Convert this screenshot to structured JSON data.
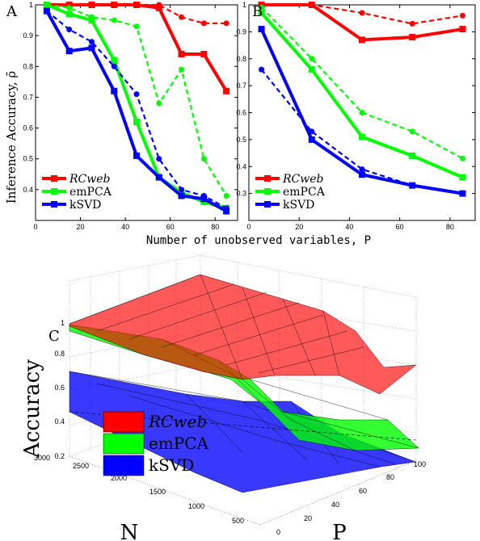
{
  "figure": {
    "xlabel": "Number of unobserved variables, P",
    "ylabel": "Inference Accuracy, ρ̄"
  },
  "chart_data": [
    {
      "panel": "A",
      "type": "line",
      "xlim": [
        0,
        90
      ],
      "ylim": [
        0.3,
        1.0
      ],
      "xticks": [
        0,
        20,
        40,
        60,
        80
      ],
      "yticks": [
        0.4,
        0.5,
        0.6,
        0.7,
        0.8,
        0.9,
        1
      ],
      "legend": "bottom-left",
      "series": [
        {
          "name": "RCweb",
          "color": "#ff0000",
          "style": "solid",
          "marker": "square",
          "x": [
            5,
            15,
            25,
            35,
            45,
            55,
            65,
            75,
            85
          ],
          "y": [
            1.0,
            1.0,
            1.0,
            1.0,
            1.0,
            0.99,
            0.84,
            0.84,
            0.72
          ]
        },
        {
          "name": "",
          "color": "#ff0000",
          "style": "dashed",
          "marker": "circle",
          "x": [
            5,
            15,
            25,
            35,
            45,
            55,
            65,
            75,
            85
          ],
          "y": [
            1.0,
            1.0,
            1.0,
            1.0,
            1.0,
            1.0,
            0.96,
            0.94,
            0.94
          ]
        },
        {
          "name": "emPCA",
          "color": "#00ff00",
          "style": "solid",
          "marker": "square",
          "x": [
            5,
            15,
            25,
            35,
            45,
            55,
            65,
            75,
            85
          ],
          "y": [
            1.0,
            0.97,
            0.95,
            0.82,
            0.62,
            0.44,
            0.39,
            0.36,
            0.34
          ]
        },
        {
          "name": "",
          "color": "#00ff00",
          "style": "dashed",
          "marker": "circle",
          "x": [
            5,
            15,
            25,
            35,
            45,
            55,
            65,
            75,
            85
          ],
          "y": [
            1.0,
            0.99,
            0.96,
            0.95,
            0.93,
            0.68,
            0.79,
            0.5,
            0.38
          ]
        },
        {
          "name": "kSVD",
          "color": "#0000ff",
          "style": "solid",
          "marker": "square",
          "x": [
            5,
            15,
            25,
            35,
            45,
            55,
            65,
            75,
            85
          ],
          "y": [
            0.98,
            0.85,
            0.86,
            0.72,
            0.51,
            0.44,
            0.38,
            0.37,
            0.33
          ]
        },
        {
          "name": "",
          "color": "#0000ff",
          "style": "dashed",
          "marker": "circle",
          "x": [
            5,
            15,
            25,
            35,
            45,
            55,
            65,
            75,
            85
          ],
          "y": [
            0.98,
            0.92,
            0.88,
            0.8,
            0.71,
            0.5,
            0.4,
            0.38,
            0.34
          ]
        }
      ]
    },
    {
      "panel": "B",
      "type": "line",
      "xlim": [
        0,
        90
      ],
      "ylim": [
        0.2,
        1.0
      ],
      "xticks": [
        0,
        20,
        40,
        60,
        80
      ],
      "yticks": [
        0.3,
        0.4,
        0.5,
        0.6,
        0.7,
        0.8,
        0.9,
        1
      ],
      "legend": "bottom-left",
      "series": [
        {
          "name": "RCweb",
          "color": "#ff0000",
          "style": "solid",
          "marker": "square",
          "x": [
            5,
            25,
            45,
            65,
            85
          ],
          "y": [
            1.0,
            1.0,
            0.87,
            0.88,
            0.91
          ]
        },
        {
          "name": "",
          "color": "#ff0000",
          "style": "dashed",
          "marker": "circle",
          "x": [
            5,
            25,
            45,
            65,
            85
          ],
          "y": [
            1.0,
            1.0,
            0.97,
            0.93,
            0.96
          ]
        },
        {
          "name": "emPCA",
          "color": "#00ff00",
          "style": "solid",
          "marker": "square",
          "x": [
            5,
            25,
            45,
            65,
            85
          ],
          "y": [
            0.97,
            0.76,
            0.51,
            0.44,
            0.36
          ]
        },
        {
          "name": "",
          "color": "#00ff00",
          "style": "dashed",
          "marker": "circle",
          "x": [
            5,
            25,
            45,
            65,
            85
          ],
          "y": [
            0.99,
            0.8,
            0.6,
            0.53,
            0.43
          ]
        },
        {
          "name": "kSVD",
          "color": "#0000ff",
          "style": "solid",
          "marker": "square",
          "x": [
            5,
            25,
            45,
            65,
            85
          ],
          "y": [
            0.91,
            0.5,
            0.37,
            0.33,
            0.3
          ]
        },
        {
          "name": "",
          "color": "#0000ff",
          "style": "dashed",
          "marker": "circle",
          "x": [
            5,
            25,
            45,
            65,
            85
          ],
          "y": [
            0.76,
            0.53,
            0.39,
            0.33,
            0.3
          ]
        }
      ]
    },
    {
      "panel": "C",
      "type": "surface3d",
      "zlabel": "Accuracy",
      "xlabel": "P",
      "ylabel": "N",
      "zticks": [
        "0.2",
        "0.4",
        "0.6",
        "0.8",
        "1"
      ],
      "pticks": [
        "0",
        "20",
        "40",
        "60",
        "80",
        "100"
      ],
      "nticks": [
        "500",
        "1000",
        "1500",
        "2000",
        "2500",
        "3000"
      ],
      "legend": "left",
      "series": [
        {
          "name": "RCweb",
          "color": "#ff0000"
        },
        {
          "name": "emPCA",
          "color": "#00ff00"
        },
        {
          "name": "kSVD",
          "color": "#0000ff"
        }
      ]
    }
  ]
}
